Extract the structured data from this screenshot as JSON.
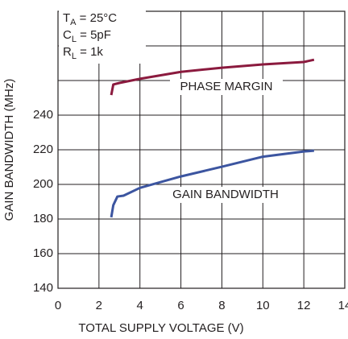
{
  "chart_data": {
    "type": "line",
    "xlabel": "TOTAL SUPPLY VOLTAGE (V)",
    "ylabel": "GAIN BANDWIDTH (MHz)",
    "xlim": [
      0,
      14
    ],
    "xticks": [
      0,
      2,
      4,
      6,
      8,
      10,
      12,
      14
    ],
    "ylim": [
      140,
      300
    ],
    "yticks": [
      140,
      160,
      180,
      200,
      220,
      240
    ],
    "ygrid": [
      140,
      160,
      180,
      200,
      220,
      240,
      260,
      280,
      300
    ],
    "grid": true,
    "conditions": [
      {
        "symbol": "T",
        "sub": "A",
        "rest": " = 25°C"
      },
      {
        "symbol": "C",
        "sub": "L",
        "rest": " = 5pF"
      },
      {
        "symbol": "R",
        "sub": "L",
        "rest": " = 1k"
      }
    ],
    "series": [
      {
        "name": "PHASE MARGIN",
        "color": "#8b1a3e",
        "x": [
          2.6,
          2.7,
          3,
          4,
          6,
          8,
          10,
          12,
          12.5
        ],
        "values": [
          251.6,
          257.7,
          258.6,
          261,
          265,
          267.4,
          269.3,
          270.7,
          272
        ]
      },
      {
        "name": "GAIN BANDWIDTH",
        "color": "#3c55a0",
        "x": [
          2.6,
          2.7,
          2.9,
          3.2,
          4,
          6,
          8,
          10,
          12,
          12.5
        ],
        "values": [
          181,
          188,
          193,
          193.5,
          198,
          204.6,
          210.2,
          216,
          219,
          219.5
        ]
      }
    ]
  }
}
